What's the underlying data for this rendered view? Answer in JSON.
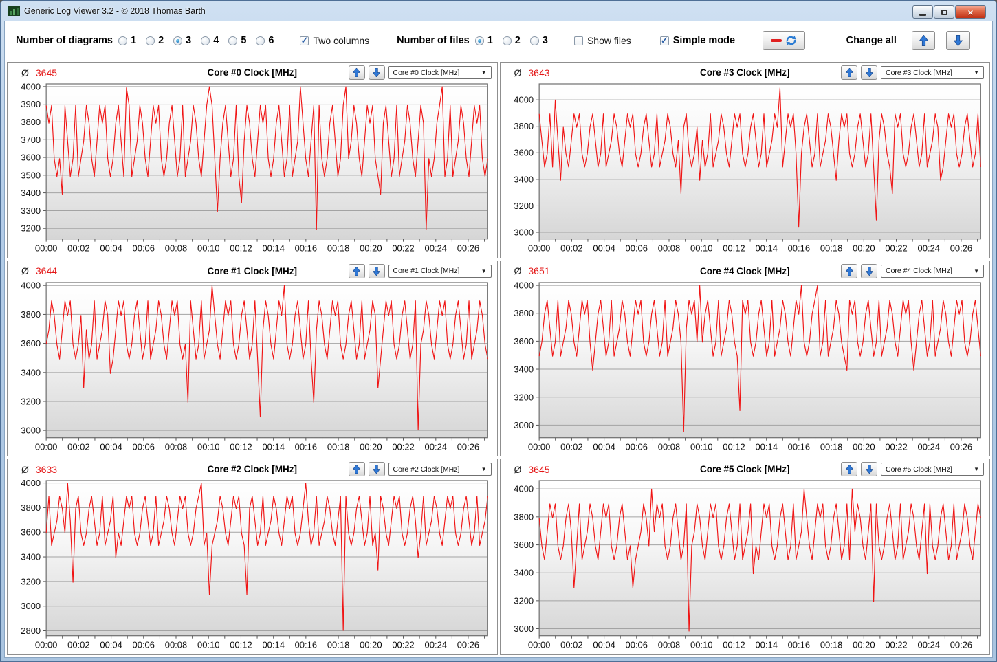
{
  "window": {
    "title": "Generic Log Viewer 3.2 - © 2018 Thomas Barth"
  },
  "toolbar": {
    "diagrams_label": "Number of diagrams",
    "diagram_counts": [
      "1",
      "2",
      "3",
      "4",
      "5",
      "6"
    ],
    "diagram_selected": "3",
    "two_columns": {
      "label": "Two columns",
      "checked": true
    },
    "files_label": "Number of files",
    "file_counts": [
      "1",
      "2",
      "3"
    ],
    "file_selected": "1",
    "show_files": {
      "label": "Show files",
      "checked": false
    },
    "simple_mode": {
      "label": "Simple mode",
      "checked": true
    },
    "change_all_label": "Change all"
  },
  "panels_common": {
    "avg_symbol": "Ø"
  },
  "chart_data": {
    "type": "line",
    "line_color": "#f01414",
    "x_total_minutes": 27.2,
    "x_tick_interval_minutes": 2,
    "x_ticks": [
      "00:00",
      "00:02",
      "00:04",
      "00:06",
      "00:08",
      "00:10",
      "00:12",
      "00:14",
      "00:16",
      "00:18",
      "00:20",
      "00:22",
      "00:24",
      "00:26"
    ],
    "n_points": 166,
    "base_cycle": [
      3893,
      3793,
      3893,
      3593,
      3493,
      3593,
      3793,
      3893,
      3693,
      3493,
      3593,
      3893,
      3493,
      3593,
      3693,
      3893,
      3793,
      3593,
      3493,
      3693
    ],
    "charts": [
      {
        "id": "core0",
        "title": "Core #0 Clock [MHz]",
        "dropdown": "Core #0 Clock [MHz]",
        "avg": "3645",
        "yticks": [
          3200,
          3300,
          3400,
          3500,
          3600,
          3700,
          3800,
          3900,
          4000
        ],
        "ylim": [
          3140,
          4015
        ],
        "offset": 0,
        "overrides": {
          "6": 3393,
          "30": 3993,
          "61": 3999,
          "64": 3293,
          "73": 3343,
          "95": 3999,
          "101": 3193,
          "112": 3999,
          "125": 3393,
          "142": 3193,
          "148": 3999
        }
      },
      {
        "id": "core3",
        "title": "Core #3 Clock [MHz]",
        "dropdown": "Core #3 Clock [MHz]",
        "avg": "3643",
        "yticks": [
          3000,
          3200,
          3400,
          3600,
          3800,
          4000
        ],
        "ylim": [
          2950,
          4120
        ],
        "offset": 7,
        "overrides": {
          "6": 3999,
          "8": 3393,
          "53": 3293,
          "60": 3393,
          "90": 4090,
          "97": 3043,
          "111": 3393,
          "126": 3093,
          "132": 3293,
          "150": 3393
        }
      },
      {
        "id": "core1",
        "title": "Core #1 Clock [MHz]",
        "dropdown": "Core #1 Clock [MHz]",
        "avg": "3644",
        "yticks": [
          3000,
          3200,
          3400,
          3600,
          3800,
          4000
        ],
        "ylim": [
          2950,
          4020
        ],
        "offset": 13,
        "overrides": {
          "14": 3293,
          "24": 3393,
          "53": 3193,
          "62": 3999,
          "80": 3093,
          "89": 3999,
          "100": 3193,
          "124": 3293,
          "139": 3003
        }
      },
      {
        "id": "core4",
        "title": "Core #4 Clock [MHz]",
        "dropdown": "Core #4 Clock [MHz]",
        "avg": "3651",
        "yticks": [
          3000,
          3200,
          3400,
          3600,
          3800,
          4000
        ],
        "ylim": [
          2910,
          4020
        ],
        "offset": 4,
        "overrides": {
          "20": 3393,
          "54": 2953,
          "60": 3999,
          "75": 3103,
          "98": 3999,
          "104": 3999,
          "115": 3393,
          "140": 3393
        }
      },
      {
        "id": "core2",
        "title": "Core #2 Clock [MHz]",
        "dropdown": "Core #2 Clock [MHz]",
        "avg": "3633",
        "yticks": [
          2800,
          3000,
          3200,
          3400,
          3600,
          3800,
          4000
        ],
        "ylim": [
          2760,
          4020
        ],
        "offset": 10,
        "overrides": {
          "8": 3999,
          "10": 3193,
          "26": 3393,
          "58": 3999,
          "61": 3093,
          "75": 3093,
          "97": 3999,
          "111": 2803,
          "124": 3293,
          "139": 3393
        }
      },
      {
        "id": "core5",
        "title": "Core #5 Clock [MHz]",
        "dropdown": "Core #5 Clock [MHz]",
        "avg": "3645",
        "yticks": [
          3000,
          3200,
          3400,
          3600,
          3800,
          4000
        ],
        "ylim": [
          2950,
          4060
        ],
        "offset": 16,
        "overrides": {
          "13": 3293,
          "35": 3293,
          "42": 3999,
          "56": 2983,
          "80": 3393,
          "99": 3999,
          "117": 3999,
          "125": 3193,
          "145": 3393
        }
      }
    ]
  }
}
